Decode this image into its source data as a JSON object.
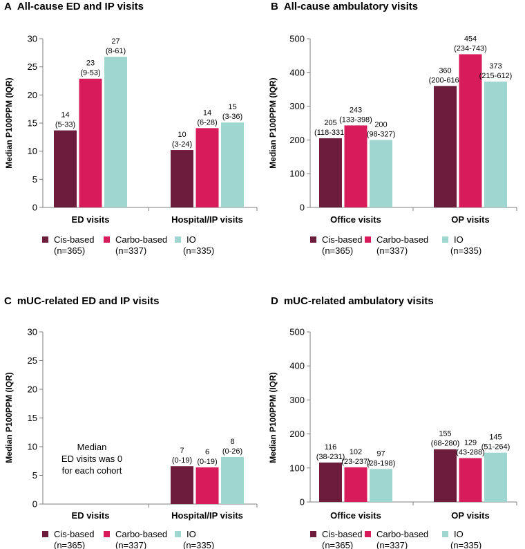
{
  "colors": {
    "Cis-based": "#6b1d3b",
    "Carbo-based": "#d81b5a",
    "IO": "#9fd6cf",
    "axis": "#7f7f7f"
  },
  "legend": [
    {
      "name": "Cis-based",
      "n": "(n=365)"
    },
    {
      "name": "Carbo-based",
      "n": "(n=337)"
    },
    {
      "name": "IO",
      "n": "(n=335)"
    }
  ],
  "chart_data": [
    {
      "panel": "A",
      "type": "bar",
      "title": "All-cause ED and IP visits",
      "ylabel": "Median P100PPM (IQR)",
      "ylim": [
        0,
        30
      ],
      "yticks": [
        0,
        5,
        10,
        15,
        20,
        25,
        30
      ],
      "categories": [
        "ED visits",
        "Hospital/IP visits"
      ],
      "series": [
        {
          "name": "Cis-based",
          "values": [
            13.7,
            10.2
          ],
          "labels": [
            "14",
            "10"
          ],
          "iqr": [
            "(5-33)",
            "(3-24)"
          ]
        },
        {
          "name": "Carbo-based",
          "values": [
            22.9,
            14.1
          ],
          "labels": [
            "23",
            "14"
          ],
          "iqr": [
            "(9-53)",
            "(6-28)"
          ]
        },
        {
          "name": "IO",
          "values": [
            26.8,
            15.1
          ],
          "labels": [
            "27",
            "15"
          ],
          "iqr": [
            "(8-61)",
            "(3-36)"
          ]
        }
      ],
      "note": ""
    },
    {
      "panel": "B",
      "type": "bar",
      "title": "All-cause ambulatory visits",
      "ylabel": "Median P100PPM (IQR)",
      "ylim": [
        0,
        500
      ],
      "yticks": [
        0,
        100,
        200,
        300,
        400,
        500
      ],
      "categories": [
        "Office visits",
        "OP visits"
      ],
      "series": [
        {
          "name": "Cis-based",
          "values": [
            205,
            360
          ],
          "labels": [
            "205",
            "360"
          ],
          "iqr": [
            "(118-331)",
            "(200-616)"
          ]
        },
        {
          "name": "Carbo-based",
          "values": [
            243,
            454
          ],
          "labels": [
            "243",
            "454"
          ],
          "iqr": [
            "(133-398)",
            "(234-743)"
          ]
        },
        {
          "name": "IO",
          "values": [
            200,
            373
          ],
          "labels": [
            "200",
            "373"
          ],
          "iqr": [
            "(98-327)",
            "(215-612)"
          ]
        }
      ],
      "note": ""
    },
    {
      "panel": "C",
      "type": "bar",
      "title": "mUC-related ED and IP visits",
      "ylabel": "Median P100PPM (IQR)",
      "ylim": [
        0,
        30
      ],
      "yticks": [
        0,
        5,
        10,
        15,
        20,
        25,
        30
      ],
      "categories": [
        "ED visits",
        "Hospital/IP visits"
      ],
      "series": [
        {
          "name": "Cis-based",
          "values": [
            0,
            6.6
          ],
          "labels": [
            "",
            "7"
          ],
          "iqr": [
            "",
            "(0-19)"
          ]
        },
        {
          "name": "Carbo-based",
          "values": [
            0,
            6.4
          ],
          "labels": [
            "",
            "6"
          ],
          "iqr": [
            "",
            "(0-19)"
          ]
        },
        {
          "name": "IO",
          "values": [
            0,
            8.2
          ],
          "labels": [
            "",
            "8"
          ],
          "iqr": [
            "",
            "(0-26)"
          ]
        }
      ],
      "note": "Median\nED visits was 0\nfor each cohort"
    },
    {
      "panel": "D",
      "type": "bar",
      "title": "mUC-related ambulatory visits",
      "ylabel": "Median P100PPM (IQR)",
      "ylim": [
        0,
        500
      ],
      "yticks": [
        0,
        100,
        200,
        300,
        400,
        500
      ],
      "categories": [
        "Office visits",
        "OP visits"
      ],
      "series": [
        {
          "name": "Cis-based",
          "values": [
            116,
            155
          ],
          "labels": [
            "116",
            "155"
          ],
          "iqr": [
            "(38-231)",
            "(68-280)"
          ]
        },
        {
          "name": "Carbo-based",
          "values": [
            102,
            129
          ],
          "labels": [
            "102",
            "129"
          ],
          "iqr": [
            "(23-237)",
            "(43-288)"
          ]
        },
        {
          "name": "IO",
          "values": [
            97,
            145
          ],
          "labels": [
            "97",
            "145"
          ],
          "iqr": [
            "(28-198)",
            "(51-264)"
          ]
        }
      ],
      "note": ""
    }
  ]
}
